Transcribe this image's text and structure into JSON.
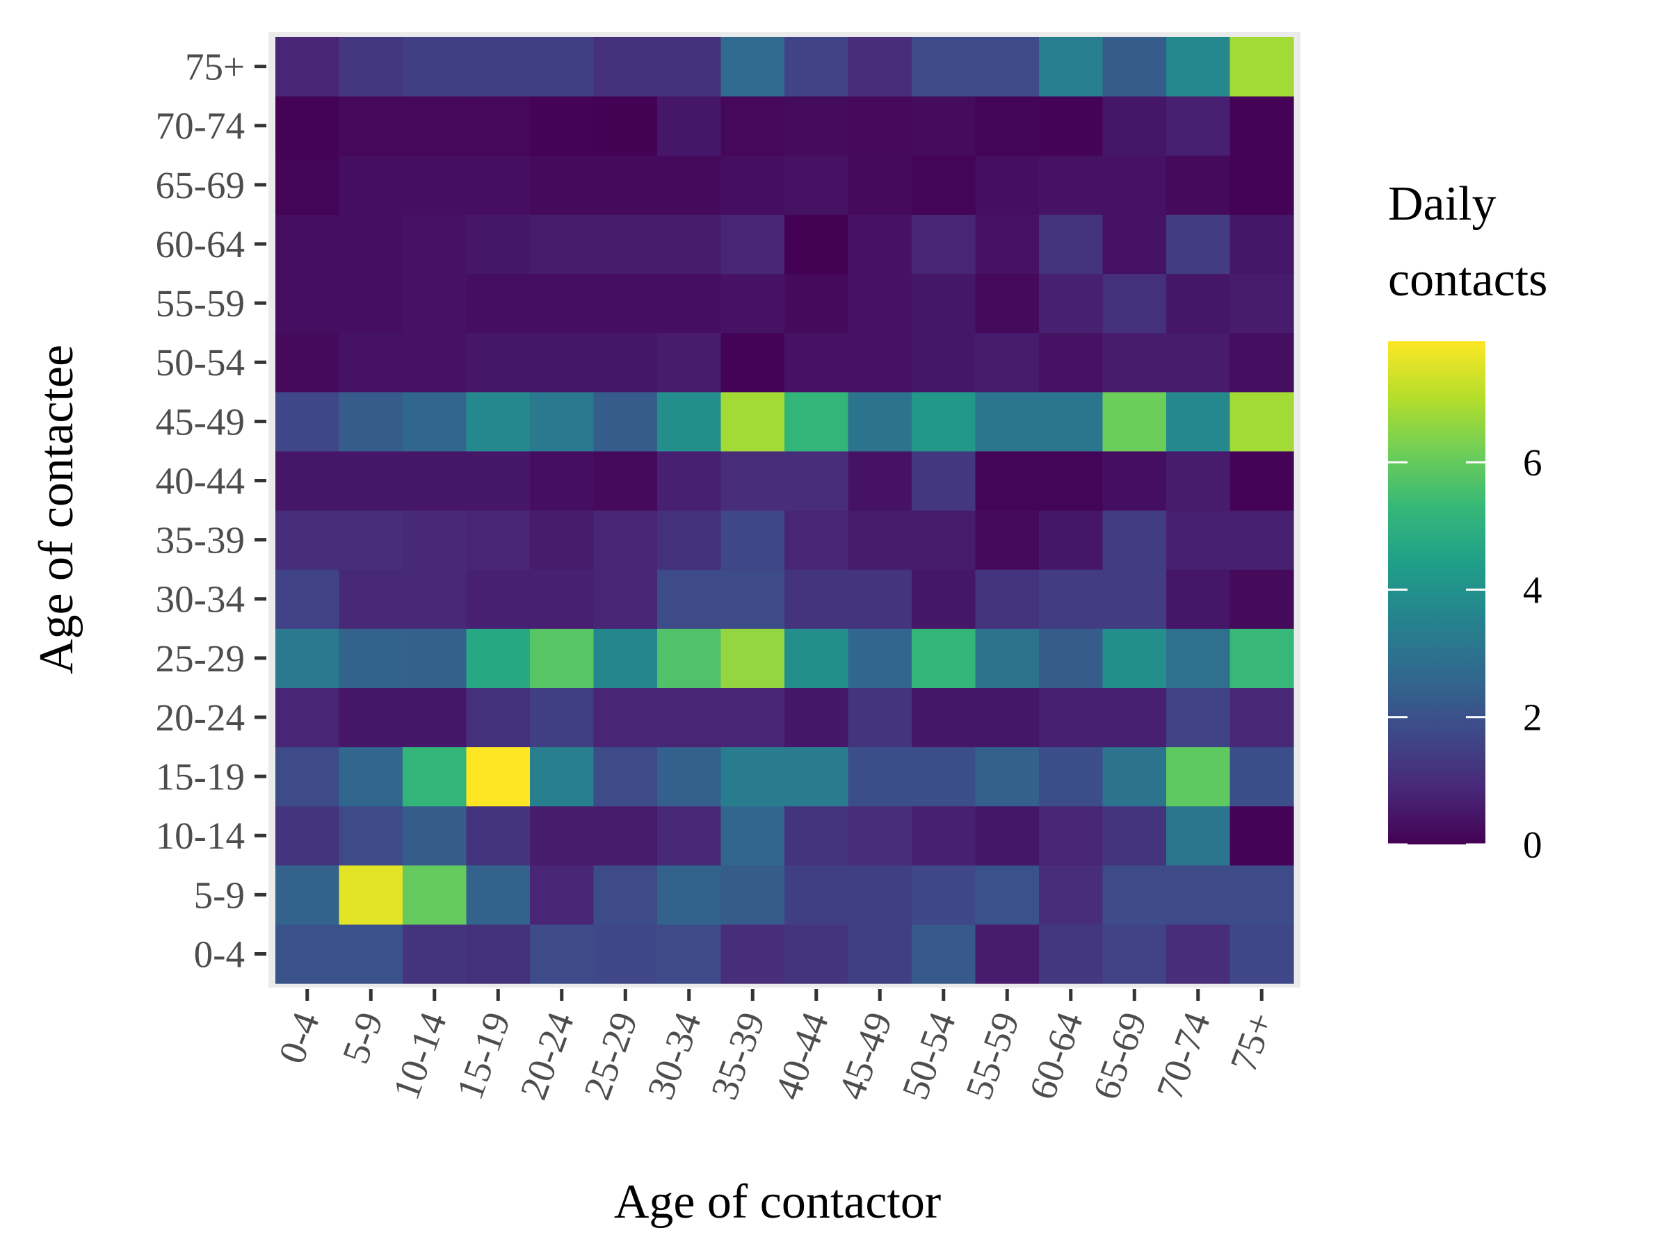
{
  "chart_data": {
    "type": "heatmap",
    "xlabel": "Age of contactor",
    "ylabel": "Age of contactee",
    "x_categories": [
      "0-4",
      "5-9",
      "10-14",
      "15-19",
      "20-24",
      "25-29",
      "30-34",
      "35-39",
      "40-44",
      "45-49",
      "50-54",
      "55-59",
      "60-64",
      "65-69",
      "70-74",
      "75+"
    ],
    "y_categories": [
      "0-4",
      "5-9",
      "10-14",
      "15-19",
      "20-24",
      "25-29",
      "30-34",
      "35-39",
      "40-44",
      "45-49",
      "50-54",
      "55-59",
      "60-64",
      "65-69",
      "70-74",
      "75+"
    ],
    "values": [
      [
        2.0,
        2.0,
        1.2,
        1.1,
        1.8,
        1.7,
        1.8,
        1.0,
        1.2,
        1.5,
        2.2,
        0.6,
        1.3,
        1.6,
        1.0,
        1.7
      ],
      [
        2.5,
        7.6,
        6.0,
        2.5,
        0.8,
        1.8,
        2.5,
        2.3,
        1.5,
        1.5,
        1.7,
        2.0,
        1.0,
        1.8,
        1.8,
        1.8
      ],
      [
        1.2,
        1.8,
        2.3,
        1.2,
        0.6,
        0.6,
        0.9,
        2.6,
        1.2,
        1.0,
        0.7,
        0.5,
        0.8,
        1.2,
        3.1,
        0.05
      ],
      [
        1.8,
        2.6,
        5.2,
        7.9,
        3.4,
        1.8,
        2.4,
        3.3,
        3.3,
        1.9,
        1.9,
        2.4,
        1.9,
        3.0,
        5.9,
        1.9
      ],
      [
        0.8,
        0.5,
        0.5,
        1.1,
        1.5,
        0.8,
        0.8,
        0.8,
        0.5,
        1.2,
        0.5,
        0.5,
        0.7,
        0.7,
        1.6,
        0.9
      ],
      [
        3.2,
        2.5,
        2.4,
        4.7,
        5.8,
        3.6,
        5.7,
        6.6,
        3.9,
        2.6,
        5.2,
        3.0,
        2.3,
        3.9,
        2.9,
        5.3
      ],
      [
        1.6,
        0.9,
        0.9,
        0.7,
        0.7,
        0.8,
        1.8,
        1.8,
        1.2,
        1.2,
        0.5,
        1.2,
        1.4,
        1.4,
        0.5,
        0.2
      ],
      [
        1.0,
        1.0,
        0.9,
        0.8,
        0.6,
        0.8,
        1.1,
        1.7,
        0.8,
        0.6,
        0.6,
        0.2,
        0.5,
        1.4,
        0.7,
        0.7
      ],
      [
        0.5,
        0.5,
        0.5,
        0.5,
        0.3,
        0.2,
        0.7,
        1.0,
        1.0,
        0.4,
        1.3,
        0.1,
        0.1,
        0.3,
        0.6,
        0.05
      ],
      [
        1.7,
        2.3,
        2.6,
        3.7,
        3.2,
        2.3,
        3.9,
        6.8,
        5.2,
        3.0,
        4.2,
        3.1,
        3.1,
        6.1,
        3.7,
        6.8
      ],
      [
        0.2,
        0.4,
        0.4,
        0.5,
        0.5,
        0.5,
        0.6,
        0.05,
        0.4,
        0.4,
        0.5,
        0.6,
        0.4,
        0.6,
        0.6,
        0.3
      ],
      [
        0.3,
        0.3,
        0.4,
        0.3,
        0.3,
        0.3,
        0.3,
        0.4,
        0.2,
        0.4,
        0.5,
        0.2,
        0.7,
        1.1,
        0.5,
        0.6
      ],
      [
        0.3,
        0.3,
        0.4,
        0.5,
        0.6,
        0.6,
        0.6,
        0.8,
        0.02,
        0.4,
        0.8,
        0.4,
        1.2,
        0.4,
        1.4,
        0.5
      ],
      [
        0.1,
        0.3,
        0.3,
        0.3,
        0.2,
        0.2,
        0.2,
        0.3,
        0.4,
        0.2,
        0.1,
        0.3,
        0.4,
        0.4,
        0.2,
        0.05
      ],
      [
        0.05,
        0.15,
        0.15,
        0.15,
        0.05,
        0.02,
        0.5,
        0.15,
        0.25,
        0.15,
        0.25,
        0.1,
        0.05,
        0.5,
        0.7,
        0.05
      ],
      [
        0.8,
        1.3,
        1.5,
        1.5,
        1.5,
        1.1,
        1.1,
        2.7,
        1.6,
        1.0,
        1.8,
        1.8,
        3.4,
        2.3,
        3.7,
        6.8
      ]
    ],
    "colorbar": {
      "title": [
        "Daily",
        "contacts"
      ],
      "min": 0,
      "max": 7.9,
      "ticks": [
        0,
        2,
        4,
        6
      ],
      "scale": "viridis"
    },
    "colors": {
      "viridis": [
        "#440154",
        "#482878",
        "#3e4989",
        "#31688e",
        "#26828e",
        "#1f9e89",
        "#35b779",
        "#6ece58",
        "#b5de2b",
        "#fde725"
      ],
      "panel_background": "#ebebeb",
      "axis_text": "#4d4d4d",
      "title_text": "#000000"
    },
    "legend_position": "right",
    "grid": true
  }
}
